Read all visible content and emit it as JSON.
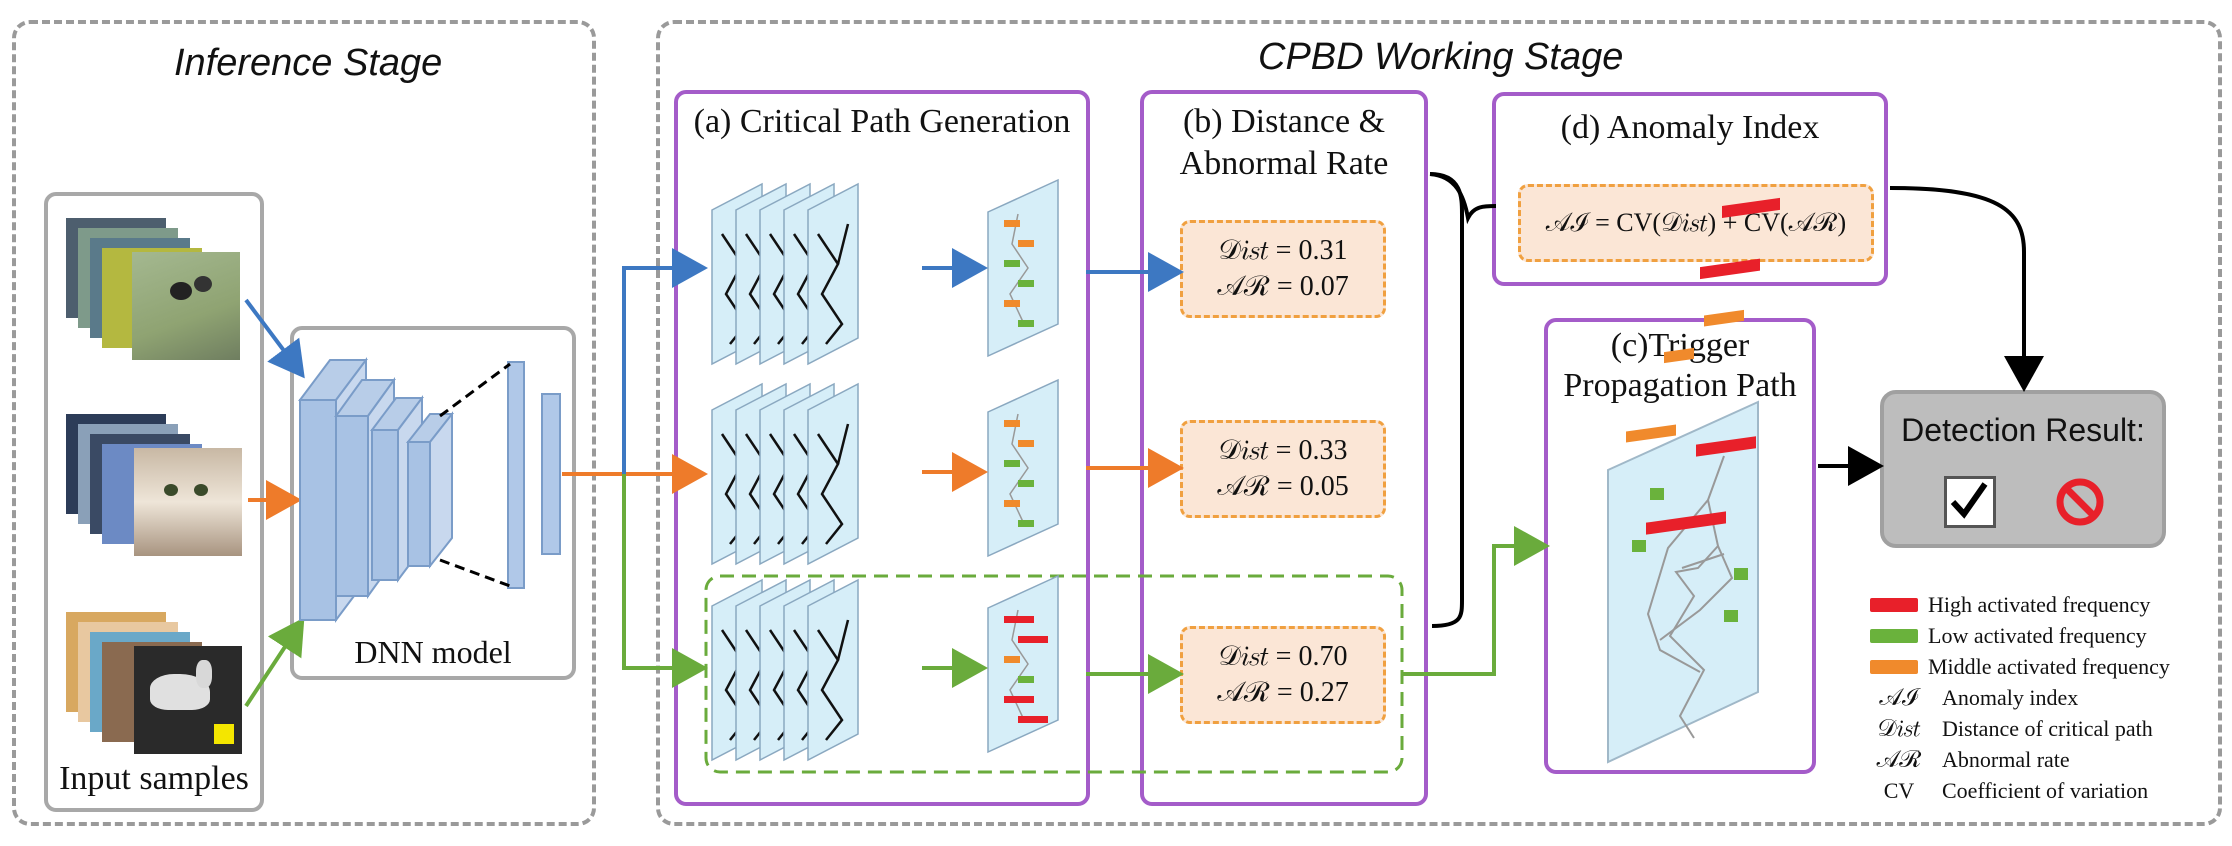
{
  "inference_stage": {
    "title": "Inference Stage",
    "input_label": "Input samples",
    "dnn_label": "DNN model"
  },
  "cpbd_stage": {
    "title": "CPBD Working Stage",
    "panel_a_title": "(a) Critical Path Generation",
    "panel_b_title_line1": "(b) Distance &",
    "panel_b_title_line2": "Abnormal Rate",
    "panel_c_title_line1": "(c)Trigger",
    "panel_c_title_line2": "Propagation Path",
    "panel_d_title": "(d) Anomaly Index",
    "formula": "𝒜ℐ = CV(𝒟𝑖𝑠𝑡) + CV(𝒜ℛ)",
    "metrics": [
      {
        "dist": "𝒟𝑖𝑠𝑡 = 0.31",
        "ar": "𝒜ℛ = 0.07"
      },
      {
        "dist": "𝒟𝑖𝑠𝑡 = 0.33",
        "ar": "𝒜ℛ = 0.05"
      },
      {
        "dist": "𝒟𝑖𝑠𝑡 = 0.70",
        "ar": "𝒜ℛ = 0.27"
      }
    ],
    "detection_title": "Detection Result:",
    "detection_icons": [
      "checkbox-checked-icon",
      "prohibited-icon"
    ]
  },
  "legend": {
    "items": [
      {
        "symbol": "",
        "label": "High activated frequency",
        "color": "#e8202a"
      },
      {
        "symbol": "",
        "label": "Low activated frequency",
        "color": "#6ab23c"
      },
      {
        "symbol": "",
        "label": "Middle activated frequency",
        "color": "#f08a2c"
      },
      {
        "symbol": "𝒜ℐ",
        "label": "Anomaly index"
      },
      {
        "symbol": "𝒟𝑖𝑠𝑡",
        "label": "Distance of critical path"
      },
      {
        "symbol": "𝒜ℛ",
        "label": "Abnormal rate"
      },
      {
        "symbol": "CV",
        "label": "Coefficient of variation"
      }
    ]
  },
  "colors": {
    "blue_arrow": "#3d78c2",
    "orange_arrow": "#ee7b2a",
    "green_arrow": "#6aab3c",
    "purple_border": "#a45cc9",
    "dashed_gray": "#9a9a9a",
    "metric_fill": "#fbe6d6",
    "metric_border": "#f0a040",
    "detection_fill": "#bdbdbd"
  }
}
